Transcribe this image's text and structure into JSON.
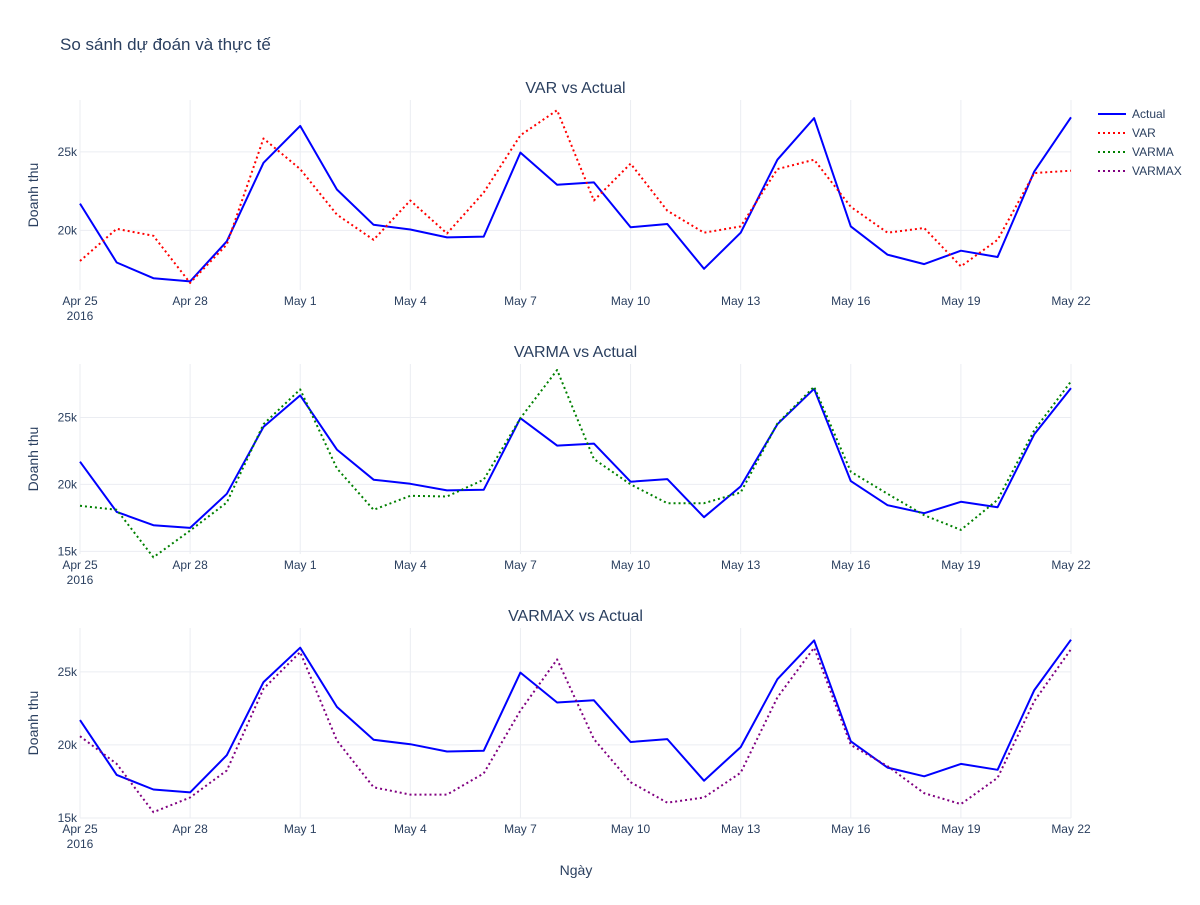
{
  "title": "So sánh dự đoán và thực tế",
  "xlabel": "Ngày",
  "legend": [
    {
      "name": "Actual",
      "color": "#0000ff",
      "dash": "solid"
    },
    {
      "name": "VAR",
      "color": "#ff0000",
      "dash": "dot"
    },
    {
      "name": "VARMA",
      "color": "#008000",
      "dash": "dot"
    },
    {
      "name": "VARMAX",
      "color": "#800080",
      "dash": "dot"
    }
  ],
  "chart_data": [
    {
      "type": "line",
      "title": "VAR vs Actual",
      "ylabel": "Doanh thu",
      "x": [
        "2016-04-25",
        "2016-04-26",
        "2016-04-27",
        "2016-04-28",
        "2016-04-29",
        "2016-04-30",
        "2016-05-01",
        "2016-05-02",
        "2016-05-03",
        "2016-05-04",
        "2016-05-05",
        "2016-05-06",
        "2016-05-07",
        "2016-05-08",
        "2016-05-09",
        "2016-05-10",
        "2016-05-11",
        "2016-05-12",
        "2016-05-13",
        "2016-05-14",
        "2016-05-15",
        "2016-05-16",
        "2016-05-17",
        "2016-05-18",
        "2016-05-19",
        "2016-05-20",
        "2016-05-21",
        "2016-05-22"
      ],
      "x_ticks": [
        "Apr 25",
        "Apr 28",
        "May 1",
        "May 4",
        "May 7",
        "May 10",
        "May 13",
        "May 16",
        "May 19",
        "May 22"
      ],
      "x_year": "2016",
      "ylim": [
        16200,
        28300
      ],
      "y_ticks": [
        20000,
        25000
      ],
      "y_tick_labels": [
        "20k",
        "25k"
      ],
      "series": [
        {
          "name": "Actual",
          "color": "#0000ff",
          "dash": "solid",
          "values": [
            21700,
            17950,
            16950,
            16750,
            19300,
            24300,
            26650,
            22600,
            20350,
            20050,
            19550,
            19600,
            24950,
            22900,
            23050,
            20200,
            20400,
            17550,
            19850,
            24500,
            27150,
            20250,
            18450,
            17850,
            18700,
            18300,
            23750,
            27200
          ]
        },
        {
          "name": "VAR",
          "color": "#ff0000",
          "dash": "dot",
          "values": [
            18050,
            20100,
            19650,
            16650,
            19100,
            25850,
            23900,
            21000,
            19400,
            21900,
            19800,
            22400,
            26050,
            27650,
            21900,
            24250,
            21250,
            19850,
            20250,
            23900,
            24500,
            21500,
            19850,
            20150,
            17700,
            19400,
            23650,
            23800
          ]
        }
      ]
    },
    {
      "type": "line",
      "title": "VARMA vs Actual",
      "ylabel": "Doanh thu",
      "x": [
        "2016-04-25",
        "2016-04-26",
        "2016-04-27",
        "2016-04-28",
        "2016-04-29",
        "2016-04-30",
        "2016-05-01",
        "2016-05-02",
        "2016-05-03",
        "2016-05-04",
        "2016-05-05",
        "2016-05-06",
        "2016-05-07",
        "2016-05-08",
        "2016-05-09",
        "2016-05-10",
        "2016-05-11",
        "2016-05-12",
        "2016-05-13",
        "2016-05-14",
        "2016-05-15",
        "2016-05-16",
        "2016-05-17",
        "2016-05-18",
        "2016-05-19",
        "2016-05-20",
        "2016-05-21",
        "2016-05-22"
      ],
      "x_ticks": [
        "Apr 25",
        "Apr 28",
        "May 1",
        "May 4",
        "May 7",
        "May 10",
        "May 13",
        "May 16",
        "May 19",
        "May 22"
      ],
      "x_year": "2016",
      "ylim": [
        14800,
        29000
      ],
      "y_ticks": [
        15000,
        20000,
        25000
      ],
      "y_tick_labels": [
        "15k",
        "20k",
        "25k"
      ],
      "series": [
        {
          "name": "Actual",
          "color": "#0000ff",
          "dash": "solid",
          "values": [
            21700,
            17950,
            16950,
            16750,
            19300,
            24300,
            26650,
            22600,
            20350,
            20050,
            19550,
            19600,
            24950,
            22900,
            23050,
            20200,
            20400,
            17550,
            19850,
            24500,
            27150,
            20250,
            18450,
            17850,
            18700,
            18300,
            23750,
            27200
          ]
        },
        {
          "name": "VARMA",
          "color": "#008000",
          "dash": "dot",
          "values": [
            18400,
            18100,
            14550,
            16550,
            18650,
            24500,
            27100,
            21200,
            18100,
            19150,
            19100,
            20350,
            24950,
            28550,
            21900,
            20000,
            18600,
            18600,
            19400,
            24550,
            27300,
            20950,
            19300,
            17700,
            16600,
            18850,
            24050,
            27700
          ]
        }
      ]
    },
    {
      "type": "line",
      "title": "VARMAX vs Actual",
      "ylabel": "Doanh thu",
      "x": [
        "2016-04-25",
        "2016-04-26",
        "2016-04-27",
        "2016-04-28",
        "2016-04-29",
        "2016-04-30",
        "2016-05-01",
        "2016-05-02",
        "2016-05-03",
        "2016-05-04",
        "2016-05-05",
        "2016-05-06",
        "2016-05-07",
        "2016-05-08",
        "2016-05-09",
        "2016-05-10",
        "2016-05-11",
        "2016-05-12",
        "2016-05-13",
        "2016-05-14",
        "2016-05-15",
        "2016-05-16",
        "2016-05-17",
        "2016-05-18",
        "2016-05-19",
        "2016-05-20",
        "2016-05-21",
        "2016-05-22"
      ],
      "x_ticks": [
        "Apr 25",
        "Apr 28",
        "May 1",
        "May 4",
        "May 7",
        "May 10",
        "May 13",
        "May 16",
        "May 19",
        "May 22"
      ],
      "x_year": "2016",
      "ylim": [
        15000,
        28000
      ],
      "y_ticks": [
        15000,
        20000,
        25000
      ],
      "y_tick_labels": [
        "15k",
        "20k",
        "25k"
      ],
      "series": [
        {
          "name": "Actual",
          "color": "#0000ff",
          "dash": "solid",
          "values": [
            21700,
            17950,
            16950,
            16750,
            19300,
            24300,
            26650,
            22600,
            20350,
            20050,
            19550,
            19600,
            24950,
            22900,
            23050,
            20200,
            20400,
            17550,
            19850,
            24500,
            27150,
            20250,
            18450,
            17850,
            18700,
            18300,
            23750,
            27200
          ]
        },
        {
          "name": "VARMAX",
          "color": "#800080",
          "dash": "dot",
          "values": [
            20600,
            18700,
            15400,
            16400,
            18250,
            23850,
            26350,
            20300,
            17100,
            16600,
            16600,
            18050,
            22350,
            25850,
            20400,
            17450,
            16050,
            16400,
            18100,
            23250,
            26650,
            20000,
            18550,
            16700,
            15950,
            17750,
            23000,
            26550
          ]
        }
      ]
    }
  ]
}
